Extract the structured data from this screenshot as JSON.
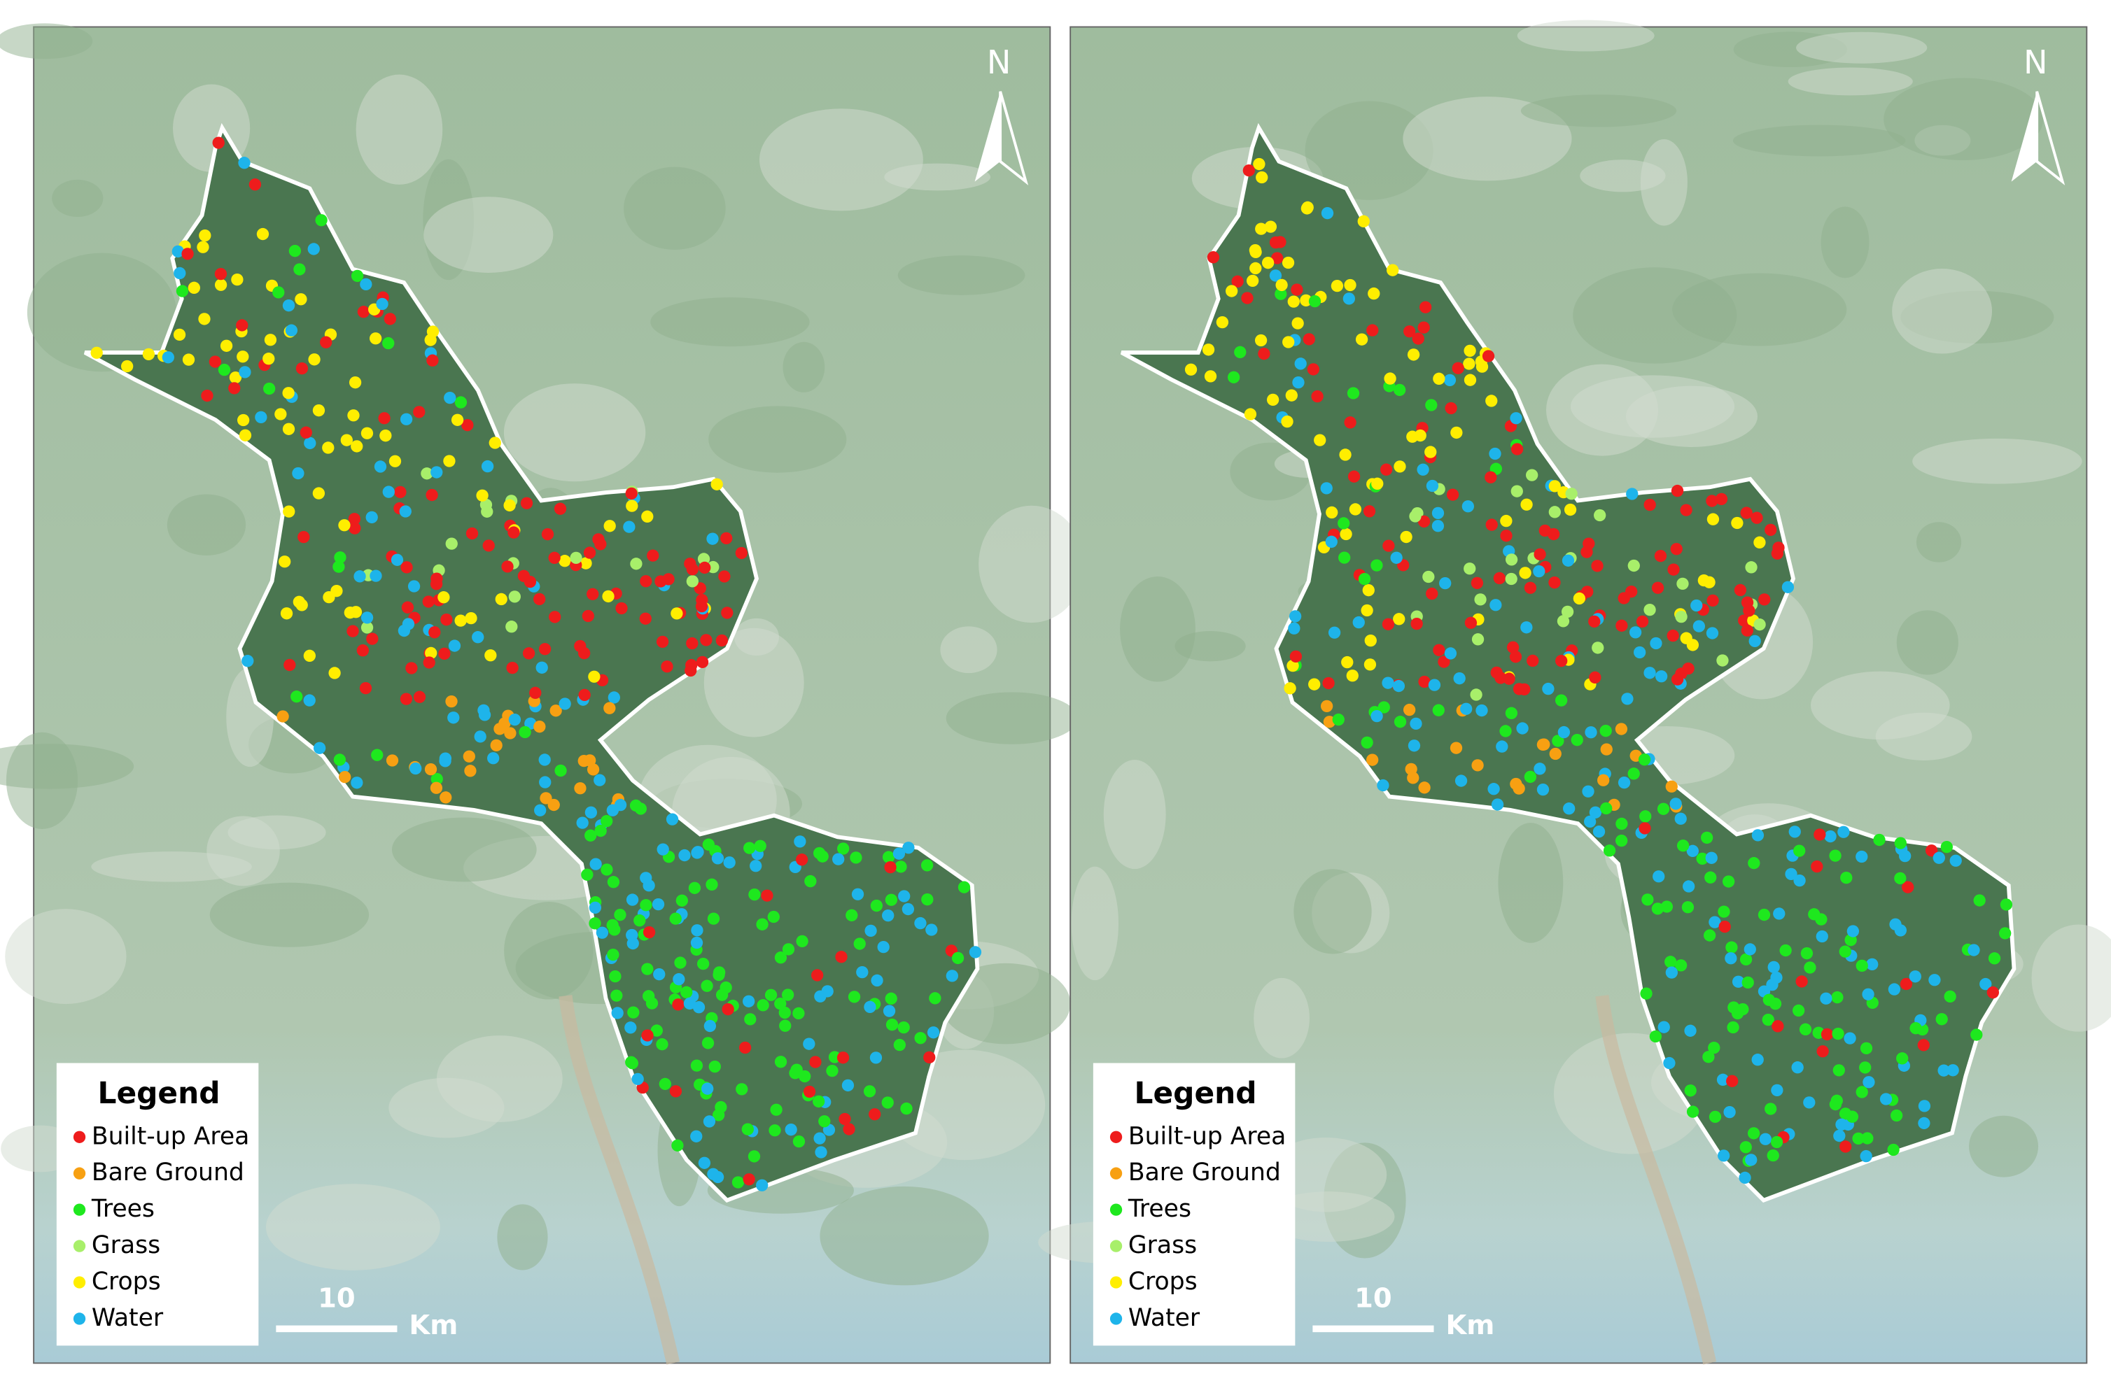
{
  "maps": [
    {
      "legend": {
        "title": "Legend",
        "items": [
          {
            "label": "Built-up Area",
            "color": "#ee1c1c"
          },
          {
            "label": "Bare Ground",
            "color": "#f7a012"
          },
          {
            "label": "Trees",
            "color": "#1ee81e"
          },
          {
            "label": "Grass",
            "color": "#a8ef6a"
          },
          {
            "label": "Crops",
            "color": "#ffee00"
          },
          {
            "label": "Water",
            "color": "#1eb4ea"
          }
        ]
      },
      "north": "N",
      "scale_bar": {
        "value": 10,
        "unit": "Km"
      }
    },
    {
      "legend": {
        "title": "Legend",
        "items": [
          {
            "label": "Built-up Area",
            "color": "#ee1c1c"
          },
          {
            "label": "Bare Ground",
            "color": "#f7a012"
          },
          {
            "label": "Trees",
            "color": "#1ee81e"
          },
          {
            "label": "Grass",
            "color": "#a8ef6a"
          },
          {
            "label": "Crops",
            "color": "#ffee00"
          },
          {
            "label": "Water",
            "color": "#1eb4ea"
          }
        ]
      },
      "north": "N",
      "scale_bar": {
        "value": 10,
        "unit": "Km"
      }
    }
  ]
}
